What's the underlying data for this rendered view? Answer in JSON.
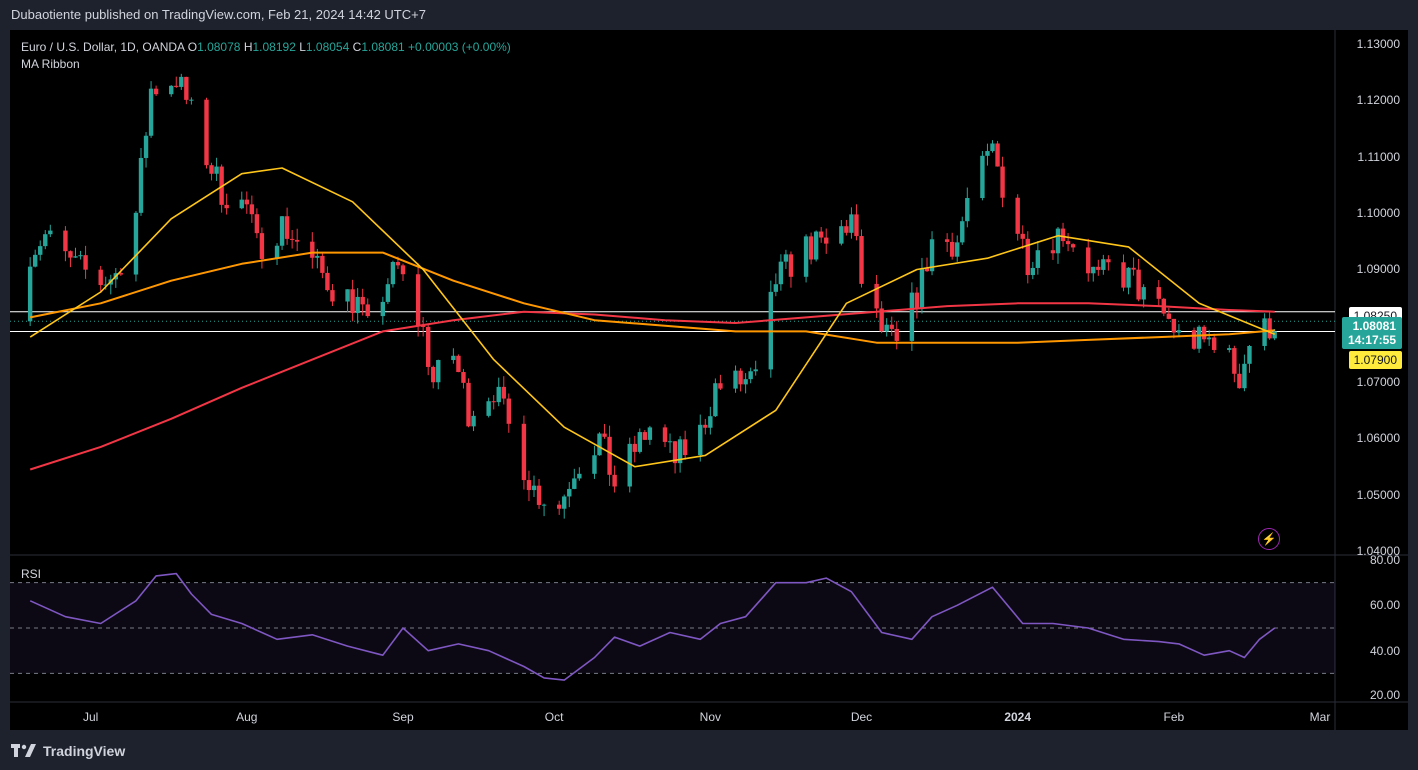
{
  "header": {
    "text": "Dubaotiente published on TradingView.com, Feb 21, 2024 14:42 UTC+7"
  },
  "legend": {
    "symbol": "Euro / U.S. Dollar, 1D, OANDA",
    "o_label": "O",
    "o_value": "1.08078",
    "h_label": "H",
    "h_value": "1.08192",
    "l_label": "L",
    "l_value": "1.08054",
    "c_label": "C",
    "c_value": "1.08081",
    "change": "+0.00003 (+0.00%)",
    "indicator": "MA Ribbon"
  },
  "rsi_label": "RSI",
  "footer": {
    "brand": "TradingView"
  },
  "price_tags": {
    "level_white": "1.08250",
    "last_price": "1.08081",
    "countdown": "14:17:55",
    "level_yellow": "1.07900"
  },
  "colors": {
    "up": "#26a69a",
    "down": "#f23645",
    "ma_fast": "#ffc61a",
    "ma_mid": "#ff9800",
    "ma_slow": "#f23645",
    "rsi": "#7e57c2"
  },
  "icons": [
    "tradingview-logo-icon",
    "lightning-alert-icon"
  ],
  "chart_data": [
    {
      "type": "candlestick",
      "title": "Euro / U.S. Dollar, 1D, OANDA",
      "y_ticks": [
        "1.13000",
        "1.12000",
        "1.11000",
        "1.10000",
        "1.09000",
        "1.07000",
        "1.06000",
        "1.05000",
        "1.04000"
      ],
      "x_ticks": [
        "Jul",
        "Aug",
        "Sep",
        "Oct",
        "Nov",
        "Dec",
        "2024",
        "Feb",
        "Mar"
      ],
      "ylim": [
        1.0395,
        1.1325
      ],
      "horizontal_levels": [
        1.0825,
        1.079
      ],
      "close_path": [
        [
          "2023-06-19",
          1.0935
        ],
        [
          "2023-06-22",
          1.096
        ],
        [
          "2023-06-27",
          1.091
        ],
        [
          "2023-07-03",
          1.088
        ],
        [
          "2023-07-06",
          1.089
        ],
        [
          "2023-07-10",
          1.1
        ],
        [
          "2023-07-13",
          1.122
        ],
        [
          "2023-07-18",
          1.124
        ],
        [
          "2023-07-20",
          1.12
        ],
        [
          "2023-07-24",
          1.11
        ],
        [
          "2023-07-27",
          1.104
        ],
        [
          "2023-08-01",
          1.101
        ],
        [
          "2023-08-03",
          1.094
        ],
        [
          "2023-08-08",
          1.098
        ],
        [
          "2023-08-11",
          1.095
        ],
        [
          "2023-08-15",
          1.09
        ],
        [
          "2023-08-18",
          1.087
        ],
        [
          "2023-08-23",
          1.084
        ],
        [
          "2023-08-25",
          1.079
        ],
        [
          "2023-08-29",
          1.088
        ],
        [
          "2023-08-31",
          1.09
        ],
        [
          "2023-09-05",
          1.079
        ],
        [
          "2023-09-07",
          1.07
        ],
        [
          "2023-09-11",
          1.075
        ],
        [
          "2023-09-14",
          1.065
        ],
        [
          "2023-09-19",
          1.069
        ],
        [
          "2023-09-22",
          1.062
        ],
        [
          "2023-09-27",
          1.051
        ],
        [
          "2023-10-02",
          1.048
        ],
        [
          "2023-10-05",
          1.055
        ],
        [
          "2023-10-10",
          1.06
        ],
        [
          "2023-10-13",
          1.052
        ],
        [
          "2023-10-17",
          1.058
        ],
        [
          "2023-10-20",
          1.062
        ],
        [
          "2023-10-25",
          1.056
        ],
        [
          "2023-10-30",
          1.061
        ],
        [
          "2023-11-02",
          1.069
        ],
        [
          "2023-11-07",
          1.07
        ],
        [
          "2023-11-10",
          1.07
        ],
        [
          "2023-11-14",
          1.088
        ],
        [
          "2023-11-20",
          1.094
        ],
        [
          "2023-11-24",
          1.094
        ],
        [
          "2023-11-29",
          1.099
        ],
        [
          "2023-12-01",
          1.088
        ],
        [
          "2023-12-05",
          1.079
        ],
        [
          "2023-12-08",
          1.076
        ],
        [
          "2023-12-13",
          1.088
        ],
        [
          "2023-12-15",
          1.095
        ],
        [
          "2023-12-20",
          1.095
        ],
        [
          "2023-12-22",
          1.102
        ],
        [
          "2023-12-27",
          1.111
        ],
        [
          "2023-12-29",
          1.105
        ],
        [
          "2024-01-03",
          1.092
        ],
        [
          "2024-01-05",
          1.094
        ],
        [
          "2024-01-10",
          1.097
        ],
        [
          "2024-01-12",
          1.095
        ],
        [
          "2024-01-17",
          1.088
        ],
        [
          "2024-01-19",
          1.09
        ],
        [
          "2024-01-24",
          1.088
        ],
        [
          "2024-01-26",
          1.085
        ],
        [
          "2024-01-31",
          1.081
        ],
        [
          "2024-02-02",
          1.078
        ],
        [
          "2024-02-07",
          1.077
        ],
        [
          "2024-02-09",
          1.078
        ],
        [
          "2024-02-14",
          1.071
        ],
        [
          "2024-02-16",
          1.077
        ],
        [
          "2024-02-21",
          1.0808
        ]
      ],
      "ma_fast": [
        [
          "2023-06-19",
          1.078
        ],
        [
          "2023-07-03",
          1.086
        ],
        [
          "2023-07-17",
          1.099
        ],
        [
          "2023-07-31",
          1.107
        ],
        [
          "2023-08-08",
          1.108
        ],
        [
          "2023-08-22",
          1.102
        ],
        [
          "2023-09-05",
          1.09
        ],
        [
          "2023-09-19",
          1.074
        ],
        [
          "2023-10-03",
          1.062
        ],
        [
          "2023-10-17",
          1.055
        ],
        [
          "2023-10-31",
          1.057
        ],
        [
          "2023-11-14",
          1.065
        ],
        [
          "2023-11-28",
          1.084
        ],
        [
          "2023-12-12",
          1.09
        ],
        [
          "2023-12-26",
          1.092
        ],
        [
          "2024-01-09",
          1.096
        ],
        [
          "2024-01-23",
          1.094
        ],
        [
          "2024-02-06",
          1.084
        ],
        [
          "2024-02-21",
          1.0785
        ]
      ],
      "ma_mid": [
        [
          "2023-06-19",
          1.0815
        ],
        [
          "2023-07-03",
          1.084
        ],
        [
          "2023-07-17",
          1.088
        ],
        [
          "2023-07-31",
          1.091
        ],
        [
          "2023-08-14",
          1.093
        ],
        [
          "2023-08-28",
          1.093
        ],
        [
          "2023-09-11",
          1.088
        ],
        [
          "2023-09-25",
          1.084
        ],
        [
          "2023-10-09",
          1.081
        ],
        [
          "2023-10-23",
          1.08
        ],
        [
          "2023-11-06",
          1.079
        ],
        [
          "2023-11-20",
          1.079
        ],
        [
          "2023-12-04",
          1.077
        ],
        [
          "2023-12-18",
          1.077
        ],
        [
          "2024-01-01",
          1.077
        ],
        [
          "2024-01-15",
          1.0775
        ],
        [
          "2024-01-29",
          1.078
        ],
        [
          "2024-02-12",
          1.0785
        ],
        [
          "2024-02-21",
          1.0792
        ]
      ],
      "ma_slow": [
        [
          "2023-06-19",
          1.0545
        ],
        [
          "2023-07-03",
          1.0585
        ],
        [
          "2023-07-17",
          1.0635
        ],
        [
          "2023-07-31",
          1.069
        ],
        [
          "2023-08-14",
          1.074
        ],
        [
          "2023-08-28",
          1.079
        ],
        [
          "2023-09-11",
          1.081
        ],
        [
          "2023-09-25",
          1.0825
        ],
        [
          "2023-10-09",
          1.082
        ],
        [
          "2023-10-23",
          1.081
        ],
        [
          "2023-11-06",
          1.0805
        ],
        [
          "2023-11-20",
          1.0815
        ],
        [
          "2023-12-04",
          1.0825
        ],
        [
          "2023-12-18",
          1.0835
        ],
        [
          "2024-01-01",
          1.084
        ],
        [
          "2024-01-15",
          1.084
        ],
        [
          "2024-01-29",
          1.0835
        ],
        [
          "2024-02-12",
          1.0828
        ],
        [
          "2024-02-21",
          1.0825
        ]
      ]
    },
    {
      "type": "line",
      "title": "RSI",
      "y_ticks": [
        "80.00",
        "60.00",
        "40.00",
        "20.00"
      ],
      "ylim": [
        20,
        80
      ],
      "bands": [
        70,
        50,
        30
      ],
      "values": [
        [
          "2023-06-19",
          62
        ],
        [
          "2023-06-26",
          55
        ],
        [
          "2023-07-03",
          52
        ],
        [
          "2023-07-10",
          62
        ],
        [
          "2023-07-14",
          73
        ],
        [
          "2023-07-18",
          74
        ],
        [
          "2023-07-21",
          65
        ],
        [
          "2023-07-25",
          56
        ],
        [
          "2023-07-31",
          52
        ],
        [
          "2023-08-07",
          45
        ],
        [
          "2023-08-14",
          47
        ],
        [
          "2023-08-21",
          42
        ],
        [
          "2023-08-28",
          38
        ],
        [
          "2023-09-01",
          50
        ],
        [
          "2023-09-06",
          40
        ],
        [
          "2023-09-12",
          43
        ],
        [
          "2023-09-18",
          40
        ],
        [
          "2023-09-25",
          33
        ],
        [
          "2023-09-29",
          28
        ],
        [
          "2023-10-03",
          27
        ],
        [
          "2023-10-09",
          37
        ],
        [
          "2023-10-13",
          46
        ],
        [
          "2023-10-18",
          42
        ],
        [
          "2023-10-24",
          48
        ],
        [
          "2023-10-30",
          45
        ],
        [
          "2023-11-03",
          52
        ],
        [
          "2023-11-08",
          55
        ],
        [
          "2023-11-14",
          70
        ],
        [
          "2023-11-20",
          70
        ],
        [
          "2023-11-24",
          72
        ],
        [
          "2023-11-29",
          66
        ],
        [
          "2023-12-05",
          48
        ],
        [
          "2023-12-11",
          45
        ],
        [
          "2023-12-15",
          55
        ],
        [
          "2023-12-20",
          60
        ],
        [
          "2023-12-27",
          68
        ],
        [
          "2024-01-02",
          52
        ],
        [
          "2024-01-08",
          52
        ],
        [
          "2024-01-15",
          50
        ],
        [
          "2024-01-22",
          45
        ],
        [
          "2024-01-29",
          44
        ],
        [
          "2024-02-02",
          43
        ],
        [
          "2024-02-07",
          38
        ],
        [
          "2024-02-12",
          40
        ],
        [
          "2024-02-15",
          37
        ],
        [
          "2024-02-18",
          45
        ],
        [
          "2024-02-21",
          50
        ]
      ]
    }
  ]
}
